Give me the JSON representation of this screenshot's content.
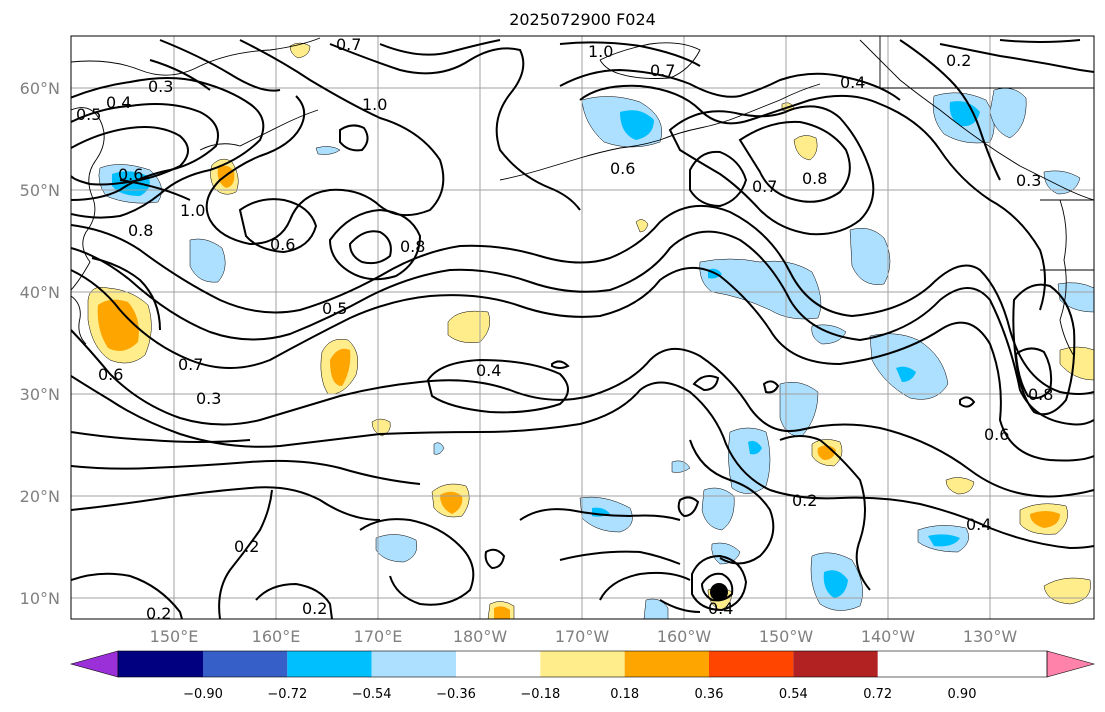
{
  "title": "2025072900 F024",
  "map": {
    "lat_ticks": [
      "10°N",
      "20°N",
      "30°N",
      "40°N",
      "50°N",
      "60°N"
    ],
    "lon_ticks": [
      "150°E",
      "160°E",
      "170°E",
      "180°W",
      "170°W",
      "160°W",
      "150°W",
      "140°W",
      "130°W"
    ],
    "contour_labels": [
      "1.0",
      "0.7",
      "0.4",
      "0.2",
      "0.3",
      "0.5",
      "0.4",
      "1.0",
      "0.7",
      "0.6",
      "0.8",
      "1.0",
      "0.6",
      "0.8",
      "0.5",
      "0.7",
      "0.3",
      "0.6",
      "0.4",
      "0.6",
      "0.7",
      "0.8",
      "0.3",
      "0.2",
      "0.2",
      "0.4",
      "0.6",
      "0.8",
      "0.2",
      "0.2",
      "0.4"
    ],
    "colors": {
      "land_outline": "#000000",
      "grid": "#a0a0a0",
      "tick_text": "#808080"
    }
  },
  "colorbar": {
    "tick_labels": [
      "−0.90",
      "−0.72",
      "−0.54",
      "−0.36",
      "−0.18",
      "0.18",
      "0.36",
      "0.54",
      "0.72",
      "0.90"
    ],
    "colors": [
      "#9b30d9",
      "#000080",
      "#3660c8",
      "#00bfff",
      "#addfff",
      "#ffffff",
      "#ffec8b",
      "#ffa500",
      "#ff4500",
      "#b22222",
      "#ff82ab"
    ]
  }
}
